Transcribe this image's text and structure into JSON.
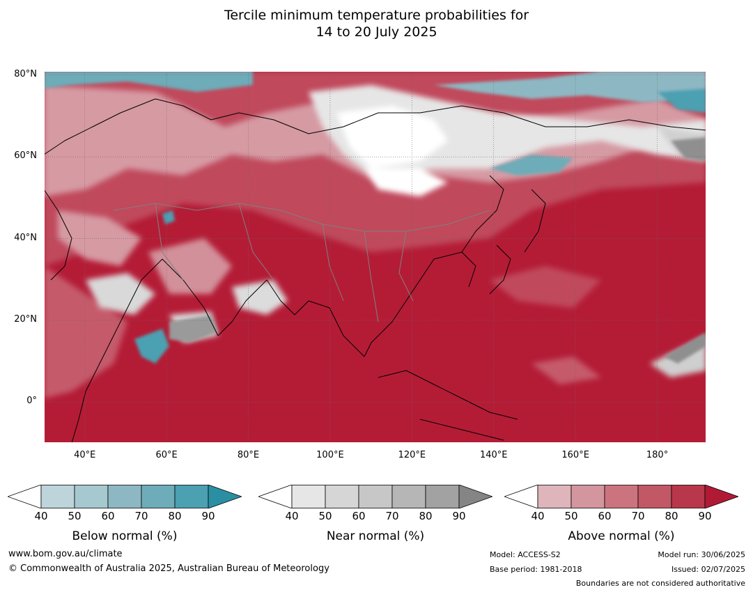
{
  "title_line1": "Tercile minimum temperature probabilities for",
  "title_line2": "14 to 20 July 2025",
  "map": {
    "lat_ticks": [
      {
        "label": "80°N",
        "lat": 80
      },
      {
        "label": "60°N",
        "lat": 60
      },
      {
        "label": "40°N",
        "lat": 40
      },
      {
        "label": "20°N",
        "lat": 20
      },
      {
        "label": "0°",
        "lat": 0
      }
    ],
    "lon_ticks": [
      {
        "label": "40°E",
        "lon": 40
      },
      {
        "label": "60°E",
        "lon": 60
      },
      {
        "label": "80°E",
        "lon": 80
      },
      {
        "label": "100°E",
        "lon": 100
      },
      {
        "label": "120°E",
        "lon": 120
      },
      {
        "label": "140°E",
        "lon": 140
      },
      {
        "label": "160°E",
        "lon": 160
      },
      {
        "label": "180°",
        "lon": 180
      }
    ],
    "lon_range": [
      30,
      192
    ],
    "lat_range": [
      -10,
      81
    ],
    "ocean_color": "#b41c36"
  },
  "colorbars": [
    {
      "name": "below",
      "title": "Below normal (%)",
      "ticks": [
        "40",
        "50",
        "60",
        "70",
        "80",
        "90"
      ],
      "colors": [
        "#ffffff",
        "#bed4db",
        "#a6c8cf",
        "#8db8c3",
        "#6dacb8",
        "#4ba0b1",
        "#2a8fa3"
      ]
    },
    {
      "name": "near",
      "title": "Near normal (%)",
      "ticks": [
        "40",
        "50",
        "60",
        "70",
        "80",
        "90"
      ],
      "colors": [
        "#ffffff",
        "#e6e6e6",
        "#d6d6d6",
        "#c7c7c7",
        "#b6b6b6",
        "#a2a2a2",
        "#858585"
      ]
    },
    {
      "name": "above",
      "title": "Above normal (%)",
      "ticks": [
        "40",
        "50",
        "60",
        "70",
        "80",
        "90"
      ],
      "colors": [
        "#ffffff",
        "#deb5bb",
        "#d4969e",
        "#cb747f",
        "#c25866",
        "#b9374b",
        "#b11a35"
      ]
    }
  ],
  "footer": {
    "url": "www.bom.gov.au/climate",
    "copyright": "© Commonwealth of Australia 2025, Australian Bureau of Meteorology",
    "model": "Model: ACCESS-S2",
    "base_period": "Base period: 1981-2018",
    "model_run": "Model run: 30/06/2025",
    "issued": "Issued: 02/07/2025",
    "disclaimer": "Boundaries are not considered authoritative"
  }
}
